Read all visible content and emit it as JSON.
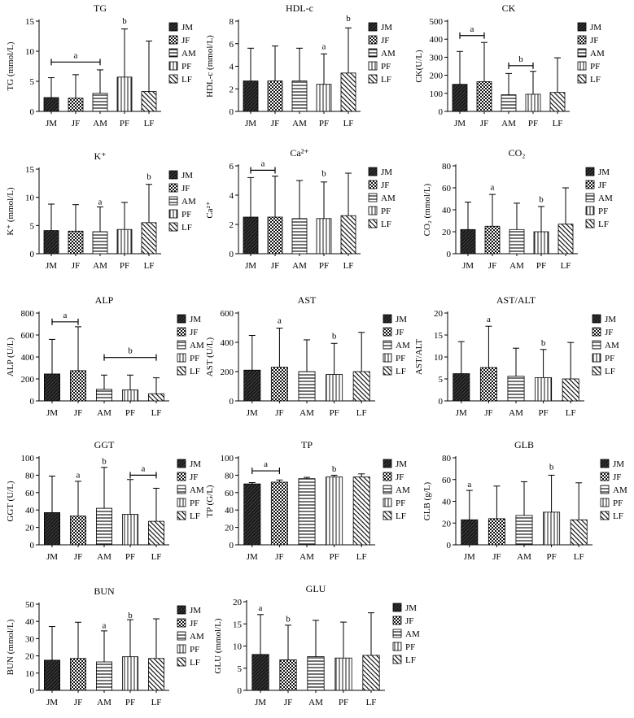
{
  "groups": [
    "JM",
    "JF",
    "AM",
    "PF",
    "LF"
  ],
  "chart_data": [
    {
      "type": "bar",
      "title": "TG",
      "ylabel": "TG (mmol/L)",
      "ylim": [
        0,
        15
      ],
      "yticks": [
        0,
        5,
        10,
        15
      ],
      "categories": [
        "JM",
        "JF",
        "AM",
        "PF",
        "LF"
      ],
      "values": [
        2.3,
        2.2,
        3.0,
        5.7,
        3.3
      ],
      "errors": [
        3.3,
        3.9,
        3.9,
        8.0,
        8.4
      ],
      "legend": [
        "JM",
        "JF",
        "AM",
        "PF",
        "LF"
      ],
      "annotations": [
        {
          "label": "a",
          "type": "bracket",
          "from": 0,
          "to": 2,
          "y": 8.2
        },
        {
          "label": "b",
          "type": "point",
          "at": 3,
          "y": 14.6
        }
      ]
    },
    {
      "type": "bar",
      "title": "HDL-c",
      "ylabel": "HDL-c (mmol/L)",
      "ylim": [
        0,
        8
      ],
      "yticks": [
        0,
        2,
        4,
        6,
        8
      ],
      "categories": [
        "JM",
        "JF",
        "AM",
        "PF",
        "LF"
      ],
      "values": [
        2.7,
        2.7,
        2.7,
        2.4,
        3.4
      ],
      "errors": [
        2.9,
        3.1,
        2.9,
        2.7,
        4.0
      ],
      "legend": [
        "JM",
        "JF",
        "AM",
        "PF",
        "LF"
      ],
      "annotations": [
        {
          "label": "a",
          "type": "point",
          "at": 3,
          "y": 5.5
        },
        {
          "label": "b",
          "type": "point",
          "at": 4,
          "y": 8.0
        }
      ]
    },
    {
      "type": "bar",
      "title": "CK",
      "ylabel": "CK(U/L)",
      "ylim": [
        0,
        500
      ],
      "yticks": [
        0,
        100,
        200,
        300,
        400,
        500
      ],
      "categories": [
        "JM",
        "JF",
        "AM",
        "PF",
        "LF"
      ],
      "values": [
        150,
        165,
        92,
        95,
        105
      ],
      "errors": [
        182,
        217,
        118,
        127,
        192
      ],
      "legend": [
        "JM",
        "JF",
        "AM",
        "PF",
        "LF"
      ],
      "annotations": [
        {
          "label": "a",
          "type": "bracket",
          "from": 0,
          "to": 1,
          "y": 420
        },
        {
          "label": "b",
          "type": "bracket",
          "from": 2,
          "to": 3,
          "y": 253
        }
      ]
    },
    {
      "type": "bar",
      "title": "K⁺",
      "ylabel": "K⁺ (mmol/L)",
      "ylim": [
        0,
        15
      ],
      "yticks": [
        0,
        5,
        10,
        15
      ],
      "categories": [
        "JM",
        "JF",
        "AM",
        "PF",
        "LF"
      ],
      "values": [
        4.1,
        4.0,
        3.9,
        4.3,
        5.5
      ],
      "errors": [
        4.7,
        4.7,
        4.4,
        4.8,
        6.8
      ],
      "legend": [
        "JM",
        "JF",
        "AM",
        "PF",
        "LF"
      ],
      "annotations": [
        {
          "label": "a",
          "type": "point",
          "at": 2,
          "y": 8.7
        },
        {
          "label": "b",
          "type": "point",
          "at": 4,
          "y": 13.2
        }
      ]
    },
    {
      "type": "bar",
      "title": "Ca²⁺",
      "ylabel": "Ca²⁺",
      "ylim": [
        0,
        6
      ],
      "yticks": [
        0,
        2,
        4,
        6
      ],
      "categories": [
        "JM",
        "JF",
        "AM",
        "PF",
        "LF"
      ],
      "values": [
        2.5,
        2.5,
        2.4,
        2.4,
        2.6
      ],
      "errors": [
        2.7,
        2.8,
        2.6,
        2.5,
        2.9
      ],
      "legend": [
        "JM",
        "JF",
        "AM",
        "PF",
        "LF"
      ],
      "annotations": [
        {
          "label": "a",
          "type": "bracket",
          "from": 0,
          "to": 1,
          "y": 5.7
        },
        {
          "label": "b",
          "type": "point",
          "at": 3,
          "y": 5.3
        }
      ]
    },
    {
      "type": "bar",
      "title": "CO₂",
      "ylabel": "CO₂ (mmol/L)",
      "ylim": [
        0,
        80
      ],
      "yticks": [
        0,
        20,
        40,
        60,
        80
      ],
      "categories": [
        "JM",
        "JF",
        "AM",
        "PF",
        "LF"
      ],
      "values": [
        22,
        25,
        22,
        20,
        27
      ],
      "errors": [
        25,
        29,
        24,
        23,
        33
      ],
      "legend": [
        "JM",
        "JF",
        "AM",
        "PF",
        "LF"
      ],
      "annotations": [
        {
          "label": "a",
          "type": "point",
          "at": 1,
          "y": 58
        },
        {
          "label": "b",
          "type": "point",
          "at": 3,
          "y": 47
        }
      ]
    },
    {
      "type": "bar",
      "title": "ALP",
      "ylabel": "ALP (U/L)",
      "ylim": [
        0,
        800
      ],
      "yticks": [
        0,
        200,
        400,
        600,
        800
      ],
      "categories": [
        "JM",
        "JF",
        "AM",
        "PF",
        "LF"
      ],
      "values": [
        245,
        275,
        105,
        100,
        65
      ],
      "errors": [
        315,
        400,
        130,
        135,
        145
      ],
      "legend": [
        "JM",
        "JF",
        "AM",
        "PF",
        "LF"
      ],
      "annotations": [
        {
          "label": "a",
          "type": "bracket",
          "from": 0,
          "to": 1,
          "y": 720
        },
        {
          "label": "b",
          "type": "bracket",
          "from": 2,
          "to": 4,
          "y": 395
        }
      ]
    },
    {
      "type": "bar",
      "title": "AST",
      "ylabel": "AST (U/L)",
      "ylim": [
        0,
        600
      ],
      "yticks": [
        0,
        200,
        400,
        600
      ],
      "categories": [
        "JM",
        "JF",
        "AM",
        "PF",
        "LF"
      ],
      "values": [
        210,
        230,
        200,
        180,
        200
      ],
      "errors": [
        237,
        267,
        217,
        213,
        268
      ],
      "legend": [
        "JM",
        "JF",
        "AM",
        "PF",
        "LF"
      ],
      "annotations": [
        {
          "label": "a",
          "type": "point",
          "at": 1,
          "y": 530
        },
        {
          "label": "b",
          "type": "point",
          "at": 3,
          "y": 425
        }
      ]
    },
    {
      "type": "bar",
      "title": "AST/ALT",
      "ylabel": "AST/ALT",
      "ylim": [
        0,
        20
      ],
      "yticks": [
        0,
        5,
        10,
        15,
        20
      ],
      "categories": [
        "JM",
        "JF",
        "AM",
        "PF",
        "LF"
      ],
      "values": [
        6.2,
        7.6,
        5.6,
        5.3,
        5.0
      ],
      "errors": [
        7.3,
        9.4,
        6.4,
        6.4,
        8.3
      ],
      "legend": [
        "JM",
        "JF",
        "AM",
        "PF",
        "LF"
      ],
      "annotations": [
        {
          "label": "a",
          "type": "point",
          "at": 1,
          "y": 18.0
        },
        {
          "label": "b",
          "type": "point",
          "at": 3,
          "y": 12.6
        }
      ]
    },
    {
      "type": "bar",
      "title": "GGT",
      "ylabel": "GGT (U/L)",
      "ylim": [
        0,
        100
      ],
      "yticks": [
        0,
        20,
        40,
        60,
        80,
        100
      ],
      "categories": [
        "JM",
        "JF",
        "AM",
        "PF",
        "LF"
      ],
      "values": [
        37,
        33,
        42,
        35,
        27
      ],
      "errors": [
        42,
        40,
        47,
        40,
        38
      ],
      "legend": [
        "JM",
        "JF",
        "AM",
        "PF",
        "LF"
      ],
      "annotations": [
        {
          "label": "a",
          "type": "point",
          "at": 1,
          "y": 77
        },
        {
          "label": "b",
          "type": "point",
          "at": 2,
          "y": 93
        },
        {
          "label": "a",
          "type": "bracket",
          "from": 3,
          "to": 4,
          "y": 80
        }
      ]
    },
    {
      "type": "bar",
      "title": "TP",
      "ylabel": "TP (G/L)",
      "ylim": [
        0,
        100
      ],
      "yticks": [
        0,
        20,
        40,
        60,
        80,
        100
      ],
      "categories": [
        "JM",
        "JF",
        "AM",
        "PF",
        "LF"
      ],
      "values": [
        70,
        72,
        76,
        78,
        78
      ],
      "errors": [
        1.5,
        2.5,
        1.5,
        2.0,
        3.5
      ],
      "legend": [
        "JM",
        "JF",
        "AM",
        "PF",
        "LF"
      ],
      "annotations": [
        {
          "label": "a",
          "type": "bracket",
          "from": 0,
          "to": 1,
          "y": 85
        },
        {
          "label": "b",
          "type": "point",
          "at": 3,
          "y": 84
        }
      ]
    },
    {
      "type": "bar",
      "title": "GLB",
      "ylabel": "GLB (g/L)",
      "ylim": [
        0,
        80
      ],
      "yticks": [
        0,
        20,
        40,
        60,
        80
      ],
      "categories": [
        "JM",
        "JF",
        "AM",
        "PF",
        "LF"
      ],
      "values": [
        23,
        24,
        27,
        30,
        23
      ],
      "errors": [
        27,
        30,
        31,
        34,
        34
      ],
      "legend": [
        "JM",
        "JF",
        "AM",
        "PF",
        "LF"
      ],
      "annotations": [
        {
          "label": "a",
          "type": "point",
          "at": 0,
          "y": 53
        },
        {
          "label": "b",
          "type": "point",
          "at": 3,
          "y": 69
        }
      ]
    },
    {
      "type": "bar",
      "title": "BUN",
      "ylabel": "BUN (mmol/L)",
      "ylim": [
        0,
        50
      ],
      "yticks": [
        0,
        10,
        20,
        30,
        40,
        50
      ],
      "categories": [
        "JM",
        "JF",
        "AM",
        "PF",
        "LF"
      ],
      "values": [
        17.5,
        18.5,
        16.5,
        19.5,
        18.5
      ],
      "errors": [
        19.5,
        21,
        18,
        21.5,
        23
      ],
      "legend": [
        "JM",
        "JF",
        "AM",
        "PF",
        "LF"
      ],
      "annotations": [
        {
          "label": "a",
          "type": "point",
          "at": 2,
          "y": 36
        },
        {
          "label": "b",
          "type": "point",
          "at": 3,
          "y": 42
        }
      ]
    },
    {
      "type": "bar",
      "title": "GLU",
      "ylabel": "GLU (mmol/L)",
      "ylim": [
        0,
        20
      ],
      "yticks": [
        0,
        5,
        10,
        15,
        20
      ],
      "categories": [
        "JM",
        "JF",
        "AM",
        "PF",
        "LF"
      ],
      "values": [
        8.1,
        6.9,
        7.6,
        7.3,
        7.9
      ],
      "errors": [
        9.0,
        7.8,
        8.2,
        8.1,
        9.6
      ],
      "legend": [
        "JM",
        "JF",
        "AM",
        "PF",
        "LF"
      ],
      "annotations": [
        {
          "label": "a",
          "type": "point",
          "at": 0,
          "y": 18.0
        },
        {
          "label": "b",
          "type": "point",
          "at": 1,
          "y": 15.5
        }
      ]
    }
  ]
}
